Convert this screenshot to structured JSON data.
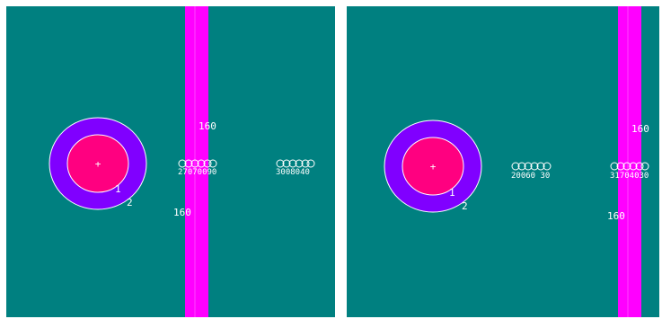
{
  "colors": {
    "background": "#008080",
    "stripe": "#ff00ff",
    "outer_ring": "#8000ff",
    "inner_circle": "#ff0080",
    "outline": "#ffffff"
  },
  "panels": [
    {
      "id": "left",
      "center_mark": "+",
      "inner_label": "1",
      "outer_label": "2",
      "stripe_label_top": "160",
      "stripe_label_bottom": "160",
      "cluster_a_text": "27070090",
      "cluster_b_text": "3008040"
    },
    {
      "id": "right",
      "center_mark": "+",
      "inner_label": "1",
      "outer_label": "2",
      "stripe_label_top": "160",
      "stripe_label_bottom": "160",
      "cluster_a_text": "20060 30",
      "cluster_b_text": "31704030"
    }
  ]
}
